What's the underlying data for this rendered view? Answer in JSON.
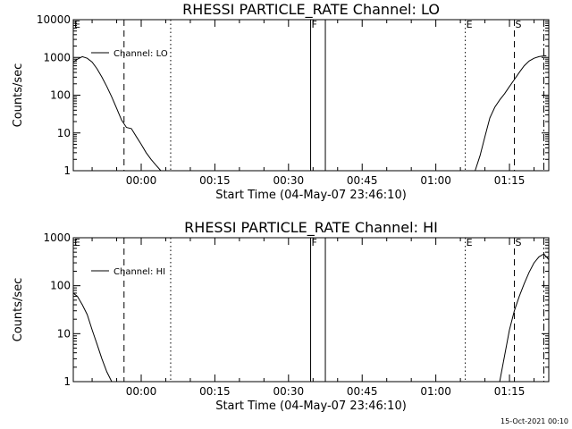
{
  "footer": {
    "timestamp": "15-Oct-2021 00:10"
  },
  "chart_data": [
    {
      "type": "line",
      "title": "RHESSI PARTICLE_RATE Channel: LO",
      "xlabel": "Start Time (04-May-07 23:46:10)",
      "ylabel": "Counts/sec",
      "yscale": "log",
      "ylim": [
        1,
        10000
      ],
      "yticks": [
        {
          "value": 1,
          "label": "1"
        },
        {
          "value": 10,
          "label": "10"
        },
        {
          "value": 100,
          "label": "100"
        },
        {
          "value": 1000,
          "label": "1000"
        },
        {
          "value": 10000,
          "label": "10000"
        }
      ],
      "xlim": [
        "23:46:10",
        "01:23:00"
      ],
      "xticks": [
        "00:00",
        "00:15",
        "00:30",
        "00:45",
        "01:00",
        "01:15"
      ],
      "legend": {
        "position": "top-left",
        "entries": [
          "Channel: LO"
        ]
      },
      "series": [
        {
          "name": "Channel: LO",
          "segments": [
            {
              "x": [
                "23:46:10",
                "23:47",
                "23:48",
                "23:49",
                "23:50",
                "23:51",
                "23:52",
                "23:53",
                "23:54",
                "23:55",
                "23:56",
                "23:57",
                "23:58",
                "23:59",
                "00:00",
                "00:01",
                "00:02",
                "00:03",
                "00:04"
              ],
              "y": [
                750,
                900,
                1050,
                950,
                750,
                500,
                300,
                170,
                90,
                45,
                22,
                14,
                13,
                8,
                5,
                3,
                2,
                1.4,
                1
              ]
            },
            {
              "x": [
                "01:08",
                "01:09",
                "01:10",
                "01:11",
                "01:12",
                "01:13",
                "01:14",
                "01:15",
                "01:16",
                "01:17",
                "01:18",
                "01:19",
                "01:20",
                "01:21",
                "01:22",
                "01:22:30"
              ],
              "y": [
                1,
                2.5,
                8,
                25,
                48,
                75,
                110,
                170,
                260,
                400,
                600,
                800,
                950,
                1050,
                1100,
                1100
              ]
            }
          ]
        }
      ],
      "annotations": [
        {
          "label": "E",
          "x": "23:46:10",
          "style": "dashed"
        },
        {
          "label": "",
          "x": "23:56:30",
          "style": "dashed"
        },
        {
          "label": "",
          "x": "00:06:00",
          "style": "dotted"
        },
        {
          "label": "F",
          "x": "00:34:30",
          "style": "solid"
        },
        {
          "label": "",
          "x": "00:37:30",
          "style": "solid"
        },
        {
          "label": "E",
          "x": "01:06:00",
          "style": "dotted"
        },
        {
          "label": "S",
          "x": "01:16:00",
          "style": "dashed"
        },
        {
          "label": "",
          "x": "01:22:00",
          "style": "dash-dot"
        }
      ]
    },
    {
      "type": "line",
      "title": "RHESSI PARTICLE_RATE Channel: HI",
      "xlabel": "Start Time (04-May-07 23:46:10)",
      "ylabel": "Counts/sec",
      "yscale": "log",
      "ylim": [
        1,
        1000
      ],
      "yticks": [
        {
          "value": 1,
          "label": "1"
        },
        {
          "value": 10,
          "label": "10"
        },
        {
          "value": 100,
          "label": "100"
        },
        {
          "value": 1000,
          "label": "1000"
        }
      ],
      "xlim": [
        "23:46:10",
        "01:23:00"
      ],
      "xticks": [
        "00:00",
        "00:15",
        "00:30",
        "00:45",
        "01:00",
        "01:15"
      ],
      "legend": {
        "position": "top-left",
        "entries": [
          "Channel: HI"
        ]
      },
      "series": [
        {
          "name": "Channel: HI",
          "segments": [
            {
              "x": [
                "23:46:10",
                "23:47",
                "23:48",
                "23:49",
                "23:50",
                "23:51",
                "23:52",
                "23:53",
                "23:54"
              ],
              "y": [
                70,
                60,
                40,
                25,
                12,
                6,
                3,
                1.6,
                1
              ]
            },
            {
              "x": [
                "01:13",
                "01:14",
                "01:15",
                "01:16",
                "01:17",
                "01:18",
                "01:19",
                "01:20",
                "01:21",
                "01:22",
                "01:23"
              ],
              "y": [
                1,
                3.5,
                12,
                30,
                60,
                110,
                190,
                300,
                400,
                460,
                350
              ]
            }
          ]
        }
      ],
      "annotations": [
        {
          "label": "E",
          "x": "23:46:10",
          "style": "dashed"
        },
        {
          "label": "",
          "x": "23:56:30",
          "style": "dashed"
        },
        {
          "label": "",
          "x": "00:06:00",
          "style": "dotted"
        },
        {
          "label": "F",
          "x": "00:34:30",
          "style": "solid"
        },
        {
          "label": "",
          "x": "00:37:30",
          "style": "solid"
        },
        {
          "label": "E",
          "x": "01:06:00",
          "style": "dotted"
        },
        {
          "label": "S",
          "x": "01:16:00",
          "style": "dashed"
        },
        {
          "label": "",
          "x": "01:22:00",
          "style": "dash-dot"
        }
      ]
    }
  ]
}
